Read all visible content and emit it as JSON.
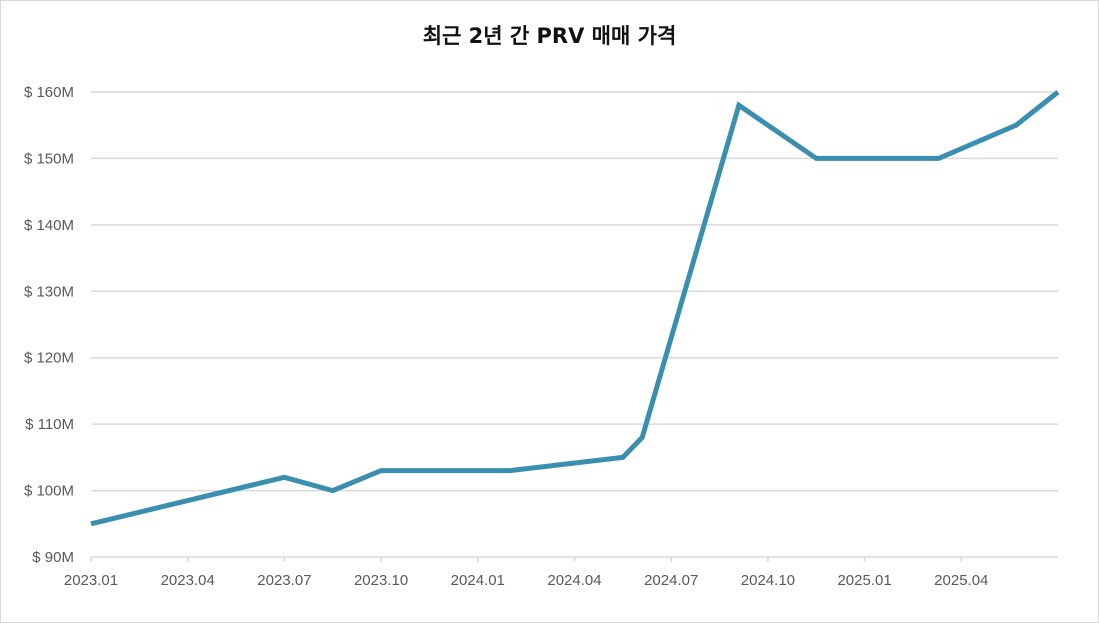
{
  "chart_data": {
    "type": "line",
    "title": "최근 2년 간 PRV 매매 가격",
    "xlabel": "",
    "ylabel": "",
    "ylim": [
      90,
      160
    ],
    "y_unit": "$ M",
    "y_ticks": [
      "$ 90M",
      "$ 100M",
      "$ 110M",
      "$ 120M",
      "$ 130M",
      "$ 140M",
      "$ 150M",
      "$ 160M"
    ],
    "x_ticks": [
      "2023.01",
      "2023.04",
      "2023.07",
      "2023.10",
      "2024.01",
      "2024.04",
      "2024.07",
      "2024.10",
      "2025.01",
      "2025.04"
    ],
    "grid": true,
    "legend": null,
    "line_color": "#3a8fb0",
    "series": [
      {
        "name": "PRV 매매 가격",
        "points": [
          {
            "x": "2023.01",
            "y": 95
          },
          {
            "x": "2023.07",
            "y": 102
          },
          {
            "x": "2023.08",
            "y": 100
          },
          {
            "x": "2023.10",
            "y": 103
          },
          {
            "x": "2024.02",
            "y": 103
          },
          {
            "x": "2024.05",
            "y": 105
          },
          {
            "x": "2024.06",
            "y": 108
          },
          {
            "x": "2024.09",
            "y": 158
          },
          {
            "x": "2024.11",
            "y": 150
          },
          {
            "x": "2025.03",
            "y": 150
          },
          {
            "x": "2025.05",
            "y": 155
          },
          {
            "x": "2025.07",
            "y": 160
          }
        ],
        "x_month_index": [
          0,
          6,
          7.5,
          9,
          13,
          16.5,
          17.1,
          20.1,
          22.5,
          26.3,
          28.7,
          30
        ]
      }
    ]
  }
}
